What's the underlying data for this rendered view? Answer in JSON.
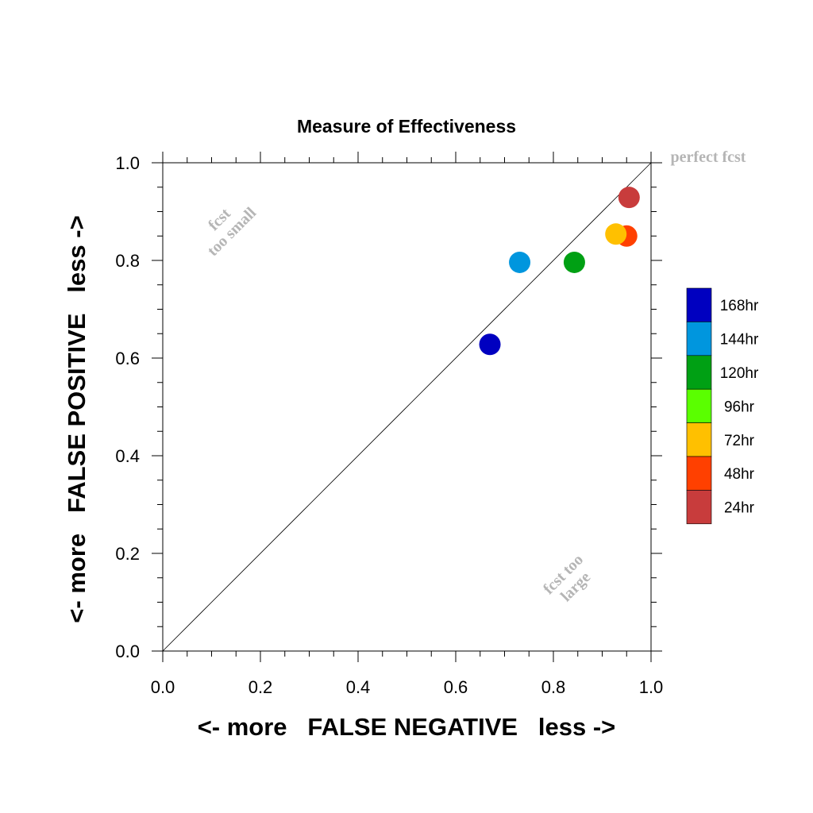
{
  "chart_data": {
    "type": "scatter",
    "title": "Measure of Effectiveness",
    "xlabel": "<- more   FALSE NEGATIVE   less ->",
    "ylabel": "<- more   FALSE POSITIVE   less ->",
    "xlim": [
      0,
      1
    ],
    "ylim": [
      0,
      1
    ],
    "xticks": [
      "0.0",
      "0.2",
      "0.4",
      "0.6",
      "0.8",
      "1.0"
    ],
    "yticks": [
      "0.0",
      "0.2",
      "0.4",
      "0.6",
      "0.8",
      "1.0"
    ],
    "grid": false,
    "diagonal_line": true,
    "annotations": {
      "top_right": "perfect fcst",
      "upper_left_line1": "fcst",
      "upper_left_line2": "too small",
      "lower_right_line1": "fcst too",
      "lower_right_line2": "large"
    },
    "legend": {
      "position": "right",
      "entries": [
        {
          "name": "168hr",
          "color": "#0000c0"
        },
        {
          "name": "144hr",
          "color": "#0096de"
        },
        {
          "name": "120hr",
          "color": "#00a014"
        },
        {
          "name": "96hr",
          "color": "#5aff00"
        },
        {
          "name": "72hr",
          "color": "#ffc000"
        },
        {
          "name": "48hr",
          "color": "#ff4000"
        },
        {
          "name": "24hr",
          "color": "#c83c3c"
        }
      ]
    },
    "points": [
      {
        "series": "168hr",
        "x": 0.67,
        "y": 0.628,
        "color": "#0000c0"
      },
      {
        "series": "144hr",
        "x": 0.731,
        "y": 0.796,
        "color": "#0096de"
      },
      {
        "series": "120hr",
        "x": 0.843,
        "y": 0.796,
        "color": "#00a014"
      },
      {
        "series": "48hr",
        "x": 0.95,
        "y": 0.85,
        "color": "#ff4000"
      },
      {
        "series": "72hr",
        "x": 0.928,
        "y": 0.854,
        "color": "#ffc000"
      },
      {
        "series": "24hr",
        "x": 0.955,
        "y": 0.929,
        "color": "#c83c3c"
      }
    ]
  }
}
